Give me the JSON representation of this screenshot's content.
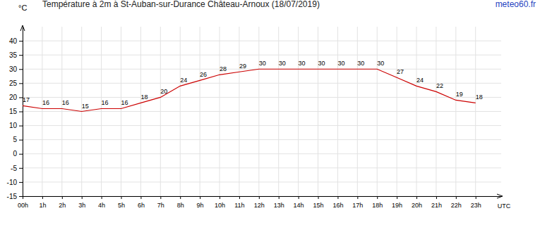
{
  "chart_data": {
    "type": "line",
    "title": "Température à 2m à St-Auban-sur-Durance Château-Arnoux (18/07/2019)",
    "source": "meteo60.fr",
    "x_label": "UTC",
    "y_label": "°C",
    "x": [
      0,
      1,
      2,
      3,
      4,
      5,
      6,
      7,
      8,
      9,
      10,
      11,
      12,
      13,
      14,
      15,
      16,
      17,
      18,
      19,
      20,
      21,
      22,
      23
    ],
    "values": [
      17,
      16,
      16,
      15,
      16,
      16,
      18,
      20,
      24,
      26,
      28,
      29,
      30,
      30,
      30,
      30,
      30,
      30,
      30,
      27,
      24,
      22,
      19,
      18
    ],
    "color": "#cc0000",
    "xlim": [
      0,
      24.3
    ],
    "xticks": [
      {
        "value": 0,
        "label": "00h"
      },
      {
        "value": 1,
        "label": "1h"
      },
      {
        "value": 2,
        "label": "2h"
      },
      {
        "value": 3,
        "label": "3h"
      },
      {
        "value": 4,
        "label": "4h"
      },
      {
        "value": 5,
        "label": "5h"
      },
      {
        "value": 6,
        "label": "6h"
      },
      {
        "value": 7,
        "label": "7h"
      },
      {
        "value": 8,
        "label": "8h"
      },
      {
        "value": 9,
        "label": "9h"
      },
      {
        "value": 10,
        "label": "10h"
      },
      {
        "value": 11,
        "label": "11h"
      },
      {
        "value": 12,
        "label": "12h"
      },
      {
        "value": 13,
        "label": "13h"
      },
      {
        "value": 14,
        "label": "14h"
      },
      {
        "value": 15,
        "label": "15h"
      },
      {
        "value": 16,
        "label": "16h"
      },
      {
        "value": 17,
        "label": "17h"
      },
      {
        "value": 18,
        "label": "18h"
      },
      {
        "value": 19,
        "label": "19h"
      },
      {
        "value": 20,
        "label": "20h"
      },
      {
        "value": 21,
        "label": "21h"
      },
      {
        "value": 22,
        "label": "22h"
      },
      {
        "value": 23,
        "label": "23h"
      }
    ],
    "ylim": [
      -15,
      45
    ],
    "yticks": [
      -15,
      -10,
      -5,
      0,
      5,
      10,
      15,
      20,
      25,
      30,
      35,
      40
    ],
    "grid": true,
    "data_labels": true
  }
}
